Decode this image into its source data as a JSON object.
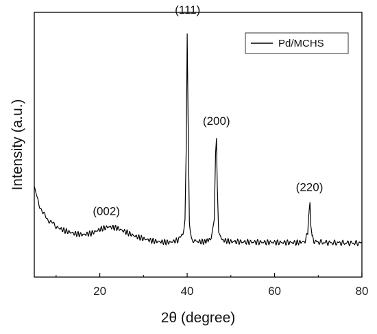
{
  "chart_data": {
    "type": "line",
    "title": "",
    "xlabel": "2θ (degree)",
    "ylabel": "Intensity (a.u.)",
    "xlim": [
      5,
      80
    ],
    "ylim": [
      0,
      100
    ],
    "x_ticks": [
      20,
      40,
      60,
      80
    ],
    "x_minor_ticks": [
      10,
      30,
      50,
      70
    ],
    "y_ticks_shown": false,
    "grid": false,
    "legend": {
      "position": "top-right",
      "entries": [
        "Pd/MCHS"
      ]
    },
    "series": [
      {
        "name": "Pd/MCHS",
        "color": "#000000",
        "x": [
          5,
          5.5,
          6,
          7,
          8,
          9,
          10,
          12,
          14,
          16,
          18,
          20,
          22,
          24,
          26,
          28,
          30,
          32,
          34,
          36,
          38,
          39,
          39.5,
          39.8,
          40.0,
          40.2,
          40.5,
          41,
          42,
          44,
          45.5,
          46.2,
          46.5,
          46.7,
          46.9,
          47.2,
          48,
          50,
          55,
          60,
          65,
          67,
          67.6,
          67.9,
          68.1,
          68.3,
          68.6,
          69.2,
          72,
          76,
          80
        ],
        "y": [
          34,
          31,
          28,
          24,
          22,
          20.5,
          19,
          17.5,
          16.5,
          16,
          16.5,
          18,
          19,
          18.5,
          17,
          15.5,
          14.5,
          13.7,
          13.3,
          13.1,
          14,
          16,
          22,
          50,
          92,
          62,
          20,
          14.5,
          13.5,
          13.3,
          14.5,
          22,
          47,
          52,
          34,
          17,
          14,
          13.4,
          13.2,
          13.1,
          13,
          13.4,
          17,
          25,
          28,
          20,
          15,
          13.3,
          13,
          12.9,
          12.8
        ]
      }
    ],
    "annotations": [
      {
        "text": "(002)",
        "x": 21.5,
        "y": 24
      },
      {
        "text": "(111)",
        "x": 40.1,
        "y": 100
      },
      {
        "text": "(200)",
        "x": 46.7,
        "y": 58
      },
      {
        "text": "(220)",
        "x": 68.0,
        "y": 33
      }
    ]
  }
}
